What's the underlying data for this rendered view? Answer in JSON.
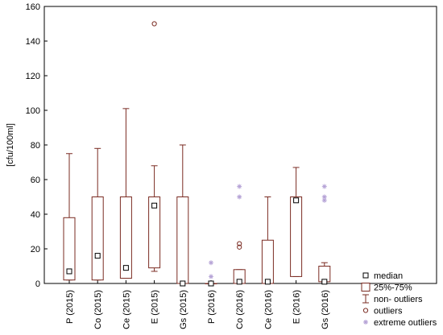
{
  "chart_data": {
    "type": "box",
    "ylabel": "[cfu/100ml]",
    "ylim": [
      0,
      160
    ],
    "yticks": [
      0,
      20,
      40,
      60,
      80,
      100,
      120,
      140,
      160
    ],
    "grid": false,
    "legend_position": "bottom-right",
    "colors": {
      "box": "#7a2b22",
      "outlier": "#7a2b22",
      "extreme": "#b5a2d6"
    },
    "categories": [
      "P (2015)",
      "Co (2015)",
      "Ce (2015)",
      "E (2015)",
      "Gs (2015)",
      "P (2016)",
      "Co (2016)",
      "Ce (2016)",
      "E (2016)",
      "Gs (2016)"
    ],
    "boxes": [
      {
        "category": "P (2015)",
        "whisker_low": 2,
        "q1": 2,
        "median": 7,
        "q3": 38,
        "whisker_high": 75,
        "outliers": [],
        "extreme_outliers": []
      },
      {
        "category": "Co (2015)",
        "whisker_low": 2,
        "q1": 2,
        "median": 16,
        "q3": 50,
        "whisker_high": 78,
        "outliers": [],
        "extreme_outliers": []
      },
      {
        "category": "Ce (2015)",
        "whisker_low": 3,
        "q1": 3,
        "median": 9,
        "q3": 50,
        "whisker_high": 101,
        "outliers": [],
        "extreme_outliers": []
      },
      {
        "category": "E (2015)",
        "whisker_low": 7,
        "q1": 9,
        "median": 45,
        "q3": 50,
        "whisker_high": 68,
        "outliers": [
          150
        ],
        "extreme_outliers": []
      },
      {
        "category": "Gs (2015)",
        "whisker_low": 0,
        "q1": 0,
        "median": 0,
        "q3": 50,
        "whisker_high": 80,
        "outliers": [],
        "extreme_outliers": []
      },
      {
        "category": "P (2016)",
        "whisker_low": 0,
        "q1": 0,
        "median": 0,
        "q3": 0,
        "whisker_high": 0,
        "outliers": [],
        "extreme_outliers": [
          4,
          12
        ]
      },
      {
        "category": "Co (2016)",
        "whisker_low": 0,
        "q1": 0,
        "median": 1,
        "q3": 8,
        "whisker_high": 8,
        "outliers": [
          21,
          23
        ],
        "extreme_outliers": [
          50,
          56
        ]
      },
      {
        "category": "Ce (2016)",
        "whisker_low": 0,
        "q1": 0,
        "median": 1,
        "q3": 25,
        "whisker_high": 50,
        "outliers": [],
        "extreme_outliers": []
      },
      {
        "category": "E (2016)",
        "whisker_low": 4,
        "q1": 4,
        "median": 48,
        "q3": 50,
        "whisker_high": 67,
        "outliers": [],
        "extreme_outliers": []
      },
      {
        "category": "Gs (2016)",
        "whisker_low": 1,
        "q1": 1,
        "median": 1,
        "q3": 10,
        "whisker_high": 12,
        "outliers": [],
        "extreme_outliers": [
          48,
          50,
          56
        ]
      }
    ],
    "legend": [
      {
        "key": "median",
        "label": "median",
        "symbol": "square"
      },
      {
        "key": "box",
        "label": "25%-75%",
        "symbol": "box"
      },
      {
        "key": "whisker",
        "label": "non- outliers",
        "symbol": "whisker"
      },
      {
        "key": "outlier",
        "label": "outliers",
        "symbol": "circle"
      },
      {
        "key": "extreme",
        "label": "extreme outliers",
        "symbol": "star"
      }
    ]
  }
}
